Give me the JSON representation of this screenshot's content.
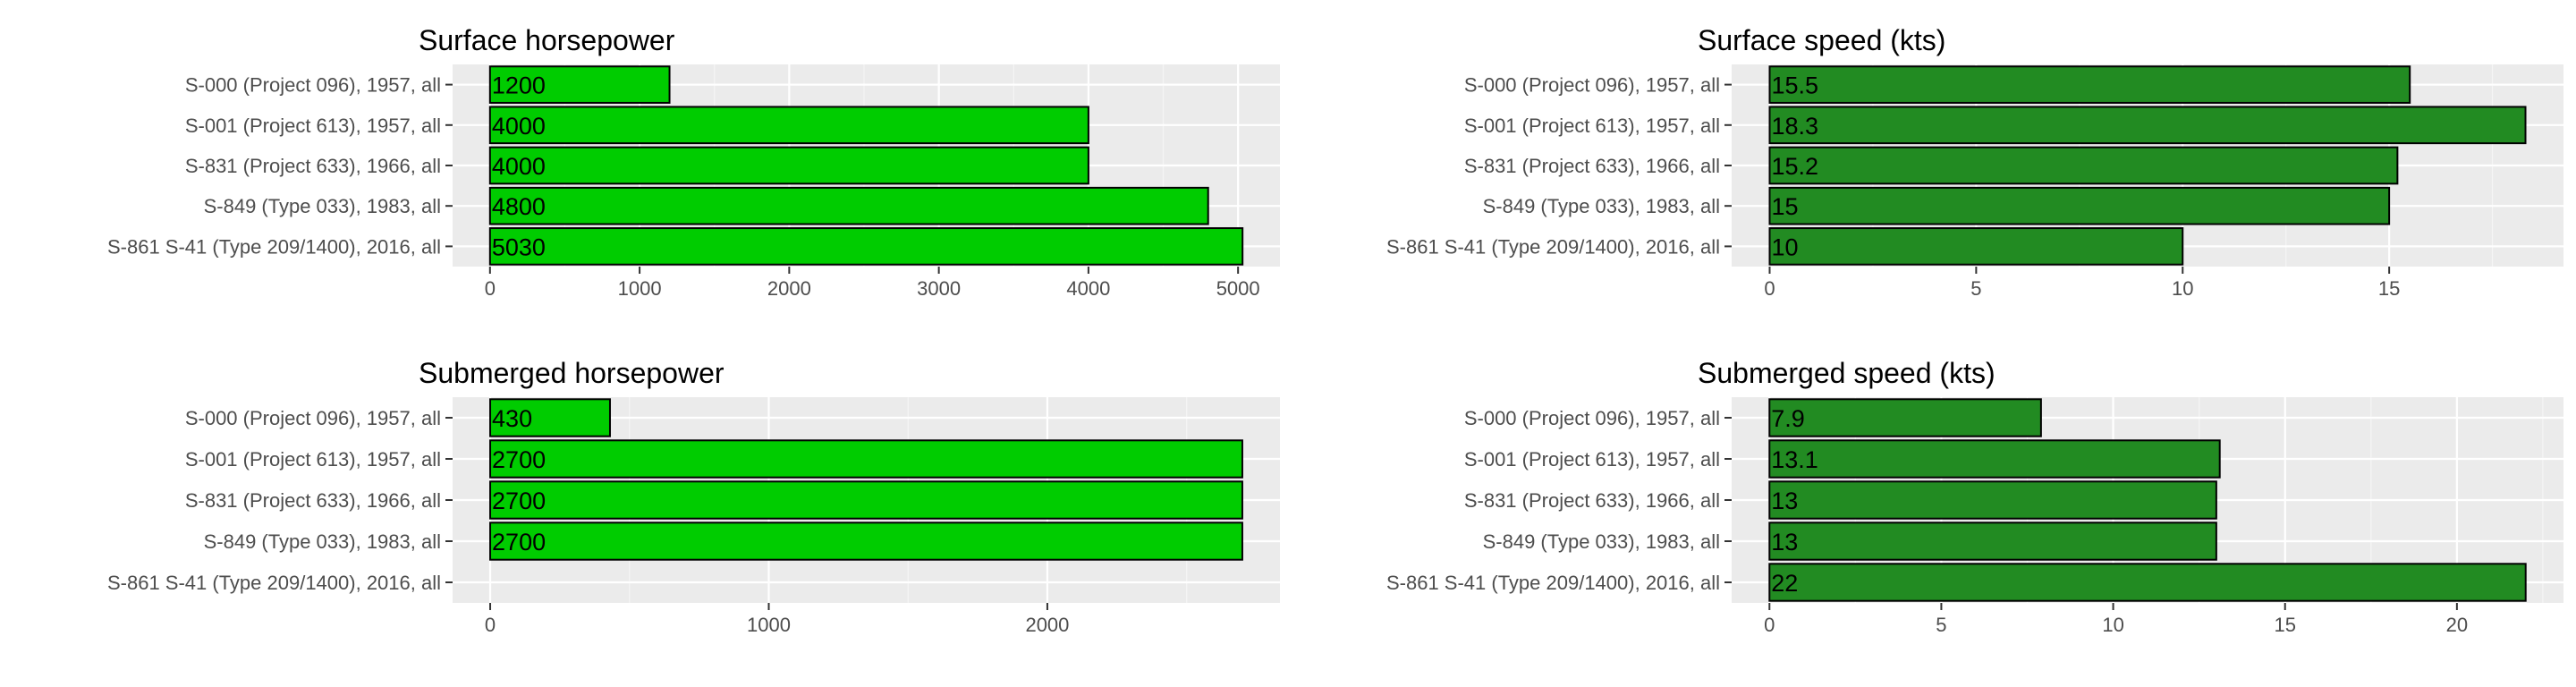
{
  "chart_data": [
    {
      "type": "bar",
      "orientation": "horizontal",
      "title": "Surface horsepower",
      "categories": [
        "S-000 (Project 096), 1957, all",
        "S-001 (Project 613), 1957, all",
        "S-831 (Project 633), 1966, all",
        "S-849 (Type 033), 1983, all",
        "S-861 S-41 (Type 209/1400), 2016, all"
      ],
      "values": [
        1200,
        4000,
        4000,
        4800,
        5030
      ],
      "xticks": [
        0,
        1000,
        2000,
        3000,
        4000,
        5000
      ],
      "xlim": [
        -250,
        5280
      ],
      "bar_color": "#00cc00",
      "grid": true
    },
    {
      "type": "bar",
      "orientation": "horizontal",
      "title": "Surface speed (kts)",
      "categories": [
        "S-000 (Project 096), 1957, all",
        "S-001 (Project 613), 1957, all",
        "S-831 (Project 633), 1966, all",
        "S-849 (Type 033), 1983, all",
        "S-861 S-41 (Type 209/1400), 2016, all"
      ],
      "values": [
        15.5,
        18.3,
        15.2,
        15,
        10
      ],
      "xticks": [
        0,
        5,
        10,
        15
      ],
      "xlim": [
        -0.92,
        19.22
      ],
      "bar_color": "#228b22",
      "grid": true
    },
    {
      "type": "bar",
      "orientation": "horizontal",
      "title": "Submerged horsepower",
      "categories": [
        "S-000 (Project 096), 1957, all",
        "S-001 (Project 613), 1957, all",
        "S-831 (Project 633), 1966, all",
        "S-849 (Type 033), 1983, all",
        "S-861 S-41 (Type 209/1400), 2016, all"
      ],
      "values": [
        430,
        2700,
        2700,
        2700,
        null
      ],
      "xticks": [
        0,
        1000,
        2000
      ],
      "xlim": [
        -135,
        2835
      ],
      "bar_color": "#00cc00",
      "grid": true
    },
    {
      "type": "bar",
      "orientation": "horizontal",
      "title": "Submerged speed (kts)",
      "categories": [
        "S-000 (Project 096), 1957, all",
        "S-001 (Project 613), 1957, all",
        "S-831 (Project 633), 1966, all",
        "S-849 (Type 033), 1983, all",
        "S-861 S-41 (Type 209/1400), 2016, all"
      ],
      "values": [
        7.9,
        13.1,
        13,
        13,
        22
      ],
      "xticks": [
        0,
        5,
        10,
        15,
        20
      ],
      "xlim": [
        -1.1,
        23.1
      ],
      "bar_color": "#228b22",
      "grid": true
    }
  ]
}
